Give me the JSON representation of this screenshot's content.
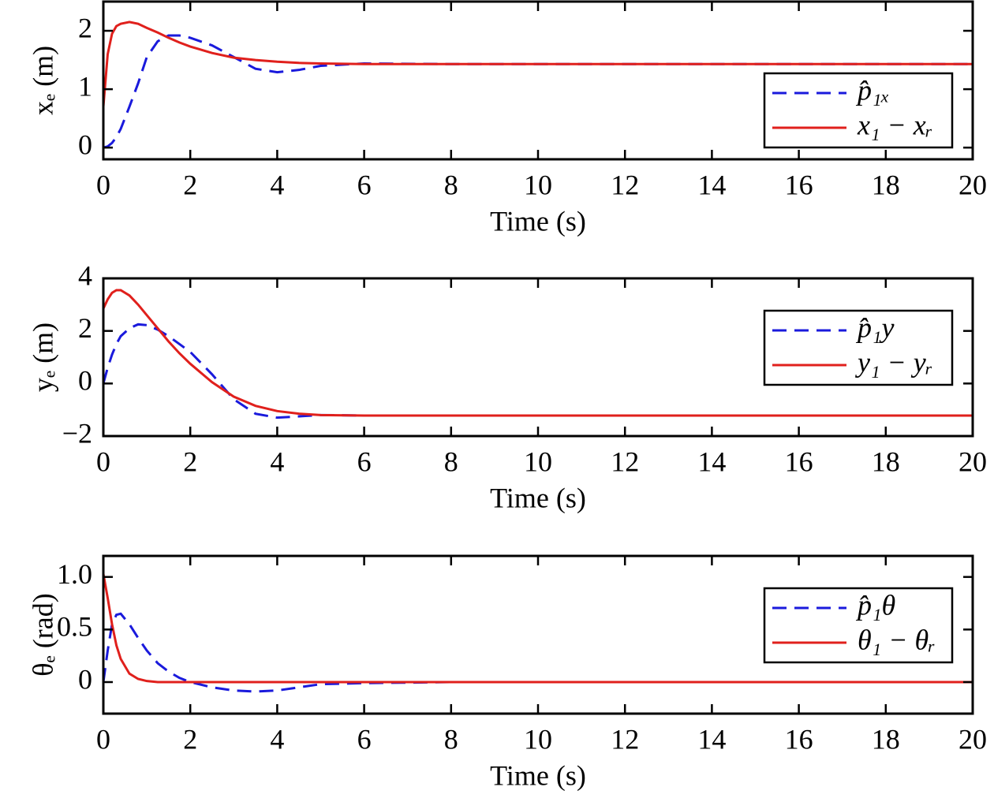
{
  "chart_data": [
    {
      "type": "line",
      "xlabel": "Time (s)",
      "ylabel": "xₑ (m)",
      "x": [
        0,
        0.1,
        0.2,
        0.3,
        0.4,
        0.6,
        0.8,
        1.0,
        1.25,
        1.5,
        1.75,
        2,
        2.5,
        3,
        3.5,
        4,
        4.5,
        5,
        6,
        8,
        10,
        12,
        14,
        16,
        18,
        20
      ],
      "series": [
        {
          "name": "p̂₁ₓ",
          "color": "#1a1adc",
          "dash": true,
          "values": [
            0,
            0.02,
            0.08,
            0.18,
            0.32,
            0.7,
            1.1,
            1.55,
            1.82,
            1.92,
            1.92,
            1.88,
            1.75,
            1.55,
            1.35,
            1.29,
            1.33,
            1.4,
            1.44,
            1.43,
            1.43,
            1.43,
            1.43,
            1.43,
            1.43,
            1.43
          ]
        },
        {
          "name": "x₁ − xᵣ",
          "color": "#e0201c",
          "dash": false,
          "values": [
            0.7,
            1.6,
            1.95,
            2.08,
            2.12,
            2.15,
            2.12,
            2.05,
            1.97,
            1.88,
            1.8,
            1.73,
            1.62,
            1.54,
            1.5,
            1.47,
            1.45,
            1.44,
            1.43,
            1.43,
            1.43,
            1.43,
            1.43,
            1.43,
            1.43,
            1.43
          ]
        }
      ],
      "xlim": [
        0,
        20
      ],
      "xticks": [
        0,
        2,
        4,
        6,
        8,
        10,
        12,
        14,
        16,
        18,
        20
      ],
      "ylim": [
        -0.2,
        2.5
      ],
      "yticks": [
        0,
        1,
        2
      ],
      "legend": "right"
    },
    {
      "type": "line",
      "xlabel": "Time (s)",
      "ylabel": "yₑ (m)",
      "x": [
        0,
        0.1,
        0.2,
        0.3,
        0.4,
        0.6,
        0.8,
        1.0,
        1.25,
        1.5,
        1.75,
        2,
        2.5,
        3,
        3.5,
        4,
        4.5,
        5,
        6,
        8,
        10,
        12,
        14,
        16,
        18,
        20
      ],
      "series": [
        {
          "name": "p̂₁y",
          "color": "#1a1adc",
          "dash": true,
          "values": [
            0,
            0.6,
            1.1,
            1.5,
            1.8,
            2.1,
            2.25,
            2.22,
            2.05,
            1.8,
            1.5,
            1.2,
            0.35,
            -0.6,
            -1.15,
            -1.3,
            -1.25,
            -1.2,
            -1.22,
            -1.22,
            -1.22,
            -1.22,
            -1.22,
            -1.22,
            -1.22,
            -1.22
          ]
        },
        {
          "name": "y₁ − yᵣ",
          "color": "#e0201c",
          "dash": false,
          "values": [
            2.85,
            3.2,
            3.45,
            3.55,
            3.55,
            3.35,
            3.0,
            2.6,
            2.1,
            1.6,
            1.15,
            0.75,
            0.05,
            -0.5,
            -0.85,
            -1.05,
            -1.15,
            -1.2,
            -1.22,
            -1.22,
            -1.22,
            -1.22,
            -1.22,
            -1.22,
            -1.22,
            -1.22
          ]
        }
      ],
      "xlim": [
        0,
        20
      ],
      "xticks": [
        0,
        2,
        4,
        6,
        8,
        10,
        12,
        14,
        16,
        18,
        20
      ],
      "ylim": [
        -2,
        4
      ],
      "yticks": [
        {
          "value": -2,
          "label": "−2"
        },
        0,
        2,
        4
      ],
      "legend": "right"
    },
    {
      "type": "line",
      "xlabel": "Time (s)",
      "ylabel": "θₑ (rad)",
      "x": [
        0,
        0.1,
        0.2,
        0.3,
        0.4,
        0.6,
        0.8,
        1.0,
        1.25,
        1.5,
        1.75,
        2,
        2.5,
        3,
        3.5,
        4,
        4.5,
        5,
        6,
        8,
        10,
        12,
        14,
        16,
        18,
        20
      ],
      "series": [
        {
          "name": "p̂₁θ",
          "color": "#1a1adc",
          "dash": true,
          "values": [
            0,
            0.3,
            0.55,
            0.64,
            0.65,
            0.55,
            0.42,
            0.3,
            0.18,
            0.1,
            0.04,
            0,
            -0.05,
            -0.08,
            -0.09,
            -0.08,
            -0.05,
            -0.02,
            -0.01,
            0,
            0,
            0,
            0,
            0,
            0,
            0
          ]
        },
        {
          "name": "θ₁ − θᵣ",
          "color": "#e0201c",
          "dash": false,
          "values": [
            1.03,
            0.8,
            0.55,
            0.35,
            0.22,
            0.08,
            0.03,
            0.01,
            0,
            0,
            0,
            0,
            0,
            0,
            0,
            0,
            0,
            0,
            0,
            0,
            0,
            0,
            0,
            0,
            0,
            0
          ]
        }
      ],
      "xlim": [
        0,
        20
      ],
      "xticks": [
        0,
        2,
        4,
        6,
        8,
        10,
        12,
        14,
        16,
        18,
        20
      ],
      "ylim": [
        -0.3,
        1.2
      ],
      "yticks": [
        0,
        0.5,
        {
          "value": 1,
          "label": "1.0"
        }
      ],
      "legend": "right"
    }
  ]
}
